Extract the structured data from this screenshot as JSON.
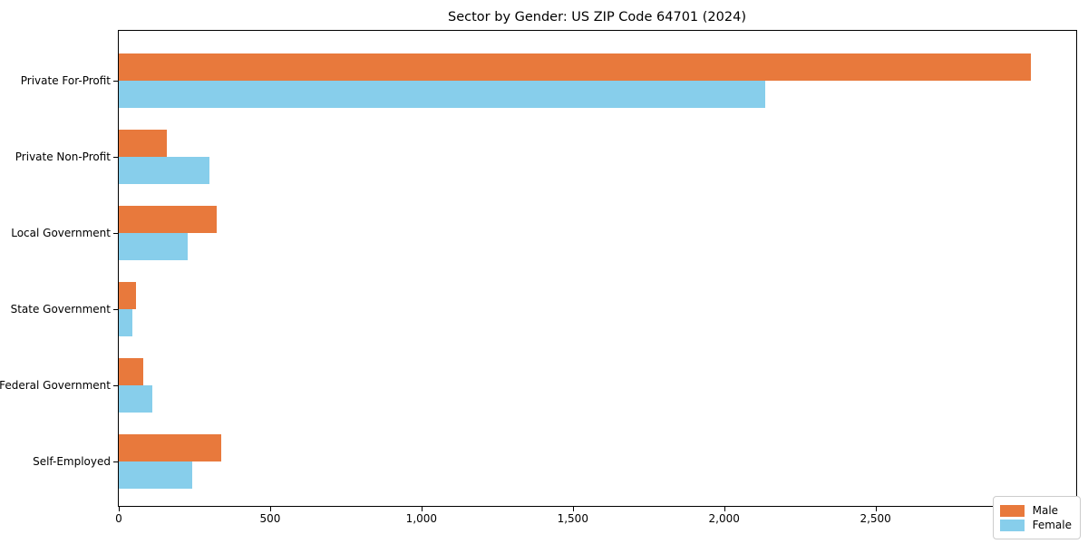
{
  "title": "Sector by Gender: US ZIP Code 64701 (2024)",
  "chart_data": {
    "type": "bar",
    "orientation": "horizontal",
    "title": "Sector by Gender: US ZIP Code 64701 (2024)",
    "categories": [
      "Private For-Profit",
      "Private Non-Profit",
      "Local Government",
      "State Government",
      "Federal Government",
      "Self-Employed"
    ],
    "series": [
      {
        "name": "Male",
        "color": "#e8793c",
        "values": [
          3012,
          158,
          323,
          58,
          80,
          338
        ]
      },
      {
        "name": "Female",
        "color": "#87ceeb",
        "values": [
          2136,
          300,
          228,
          46,
          111,
          243
        ]
      }
    ],
    "xlabel": "",
    "ylabel": "",
    "xlim": [
      0,
      3163
    ],
    "xticks": {
      "values": [
        0,
        500,
        1000,
        1500,
        2000,
        2500,
        3000
      ],
      "labels": [
        "0",
        "500",
        "1,000",
        "1,500",
        "2,000",
        "2,500",
        "3,000"
      ]
    },
    "grid": false,
    "legend": {
      "position": "lower right",
      "entries": [
        "Male",
        "Female"
      ]
    },
    "colors": {
      "male": "#e8793c",
      "female": "#87ceeb",
      "frame": "#000000",
      "background": "#ffffff",
      "legend_border": "#cccccc"
    }
  }
}
